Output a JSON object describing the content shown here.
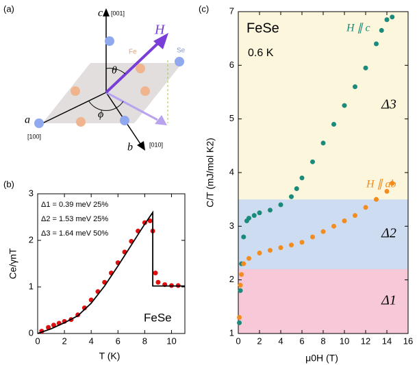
{
  "diagram": {
    "label": "(a)",
    "labels": {
      "c": "c",
      "c_dir": "[001]",
      "H": "H",
      "Fe": "Fe",
      "Se": "Se",
      "theta": "θ",
      "phi": "ϕ",
      "a": "a",
      "a_dir": "[100]",
      "b": "b",
      "b_dir": "[010]"
    }
  },
  "chart_data": [
    {
      "type": "scatter",
      "label": "(b)",
      "xlabel": "T (K)",
      "ylabel": "Ce/γnT",
      "xlim": [
        0,
        11
      ],
      "ylim": [
        0,
        3
      ],
      "xticks": [
        0,
        2,
        4,
        6,
        8,
        10
      ],
      "yticks": [
        0,
        1,
        2,
        3
      ],
      "annotations": [
        "Δ1 = 0.39 meV  25%",
        "Δ2 = 1.53 meV  25%",
        "Δ3 = 1.64 meV  50%",
        "FeSe"
      ],
      "series": [
        {
          "color": "#e01010",
          "mode": "markers",
          "x": [
            0.3,
            0.8,
            1.2,
            1.6,
            2,
            2.5,
            3,
            3.5,
            4,
            4.5,
            5,
            5.5,
            6,
            6.5,
            7,
            7.5,
            8,
            8.4,
            8.6,
            8.8,
            9,
            9.5,
            10,
            10.5
          ],
          "values": [
            0.05,
            0.13,
            0.18,
            0.22,
            0.26,
            0.3,
            0.4,
            0.55,
            0.72,
            0.9,
            1.1,
            1.3,
            1.52,
            1.75,
            1.98,
            2.2,
            2.38,
            2.42,
            2.2,
            1.3,
            1.1,
            1.05,
            1.03,
            1.03
          ]
        },
        {
          "color": "#000000",
          "mode": "line",
          "x": [
            0,
            1,
            2,
            3,
            4,
            5,
            6,
            7,
            8,
            8.6,
            8.6,
            11
          ],
          "values": [
            0,
            0.1,
            0.23,
            0.38,
            0.65,
            1.02,
            1.45,
            1.9,
            2.35,
            2.6,
            1.02,
            1.02
          ]
        }
      ]
    },
    {
      "type": "scatter",
      "label": "(c)",
      "xlabel": "μ0H (T)",
      "ylabel": "C/T (mJ/mol K2)",
      "xlim": [
        0,
        16
      ],
      "ylim": [
        1,
        7
      ],
      "xticks": [
        0,
        2,
        4,
        6,
        8,
        10,
        12,
        14,
        16
      ],
      "yticks": [
        1,
        2,
        3,
        4,
        5,
        6,
        7
      ],
      "annotations": [
        "FeSe",
        "0.6 K"
      ],
      "bands": [
        {
          "from": 1,
          "to": 2.2,
          "color": "#f7c9d8",
          "label": "Δ1"
        },
        {
          "from": 2.2,
          "to": 3.5,
          "color": "#cddcf0",
          "label": "Δ2"
        },
        {
          "from": 3.5,
          "to": 7,
          "color": "#fbf6dc",
          "label": "Δ3"
        }
      ],
      "series": [
        {
          "name": "H ∥ c",
          "color": "#1a8a7a",
          "mode": "markers",
          "x": [
            0.1,
            0.2,
            0.3,
            0.5,
            0.8,
            1,
            1.5,
            2,
            3,
            4,
            5,
            5.5,
            6,
            7,
            8,
            9,
            10,
            11,
            12,
            13,
            13.5,
            14,
            14.5
          ],
          "values": [
            1.2,
            1.8,
            2.3,
            2.8,
            3.1,
            3.15,
            3.2,
            3.25,
            3.3,
            3.4,
            3.55,
            3.7,
            3.9,
            4.2,
            4.55,
            4.9,
            5.25,
            5.6,
            5.95,
            6.4,
            6.65,
            6.85,
            6.9
          ]
        },
        {
          "name": "H ∥ ab",
          "color": "#f28c1e",
          "mode": "markers",
          "x": [
            0.1,
            0.2,
            0.3,
            0.5,
            1,
            2,
            3,
            4,
            5,
            6,
            7,
            8,
            9,
            10,
            11,
            12,
            13,
            14,
            14.5
          ],
          "values": [
            1.3,
            1.9,
            2.1,
            2.3,
            2.4,
            2.5,
            2.55,
            2.6,
            2.65,
            2.7,
            2.8,
            2.9,
            3.0,
            3.1,
            3.2,
            3.35,
            3.5,
            3.65,
            3.8
          ]
        }
      ]
    }
  ]
}
